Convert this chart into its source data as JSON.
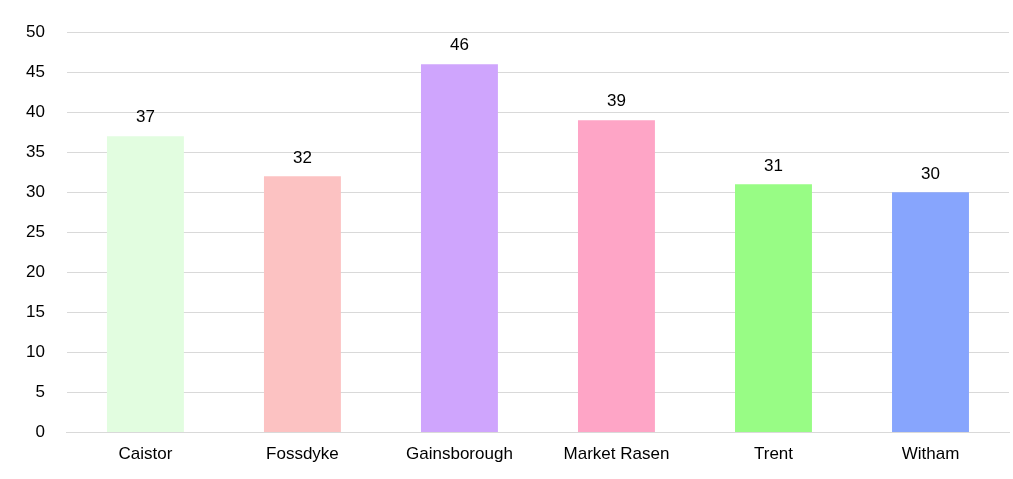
{
  "chart_data": {
    "type": "bar",
    "categories": [
      "Caistor",
      "Fossdyke",
      "Gainsborough",
      "Market Rasen",
      "Trent",
      "Witham"
    ],
    "values": [
      37,
      32,
      46,
      39,
      31,
      30
    ],
    "colors": [
      "#e2fde0",
      "#fcc2c2",
      "#cfa5fd",
      "#fea5c6",
      "#98fc85",
      "#87a5fd"
    ],
    "ylim": [
      0,
      50
    ],
    "yticks": [
      0,
      5,
      10,
      15,
      20,
      25,
      30,
      35,
      40,
      45,
      50
    ],
    "grid": "y",
    "data_labels": true,
    "legend": false
  }
}
